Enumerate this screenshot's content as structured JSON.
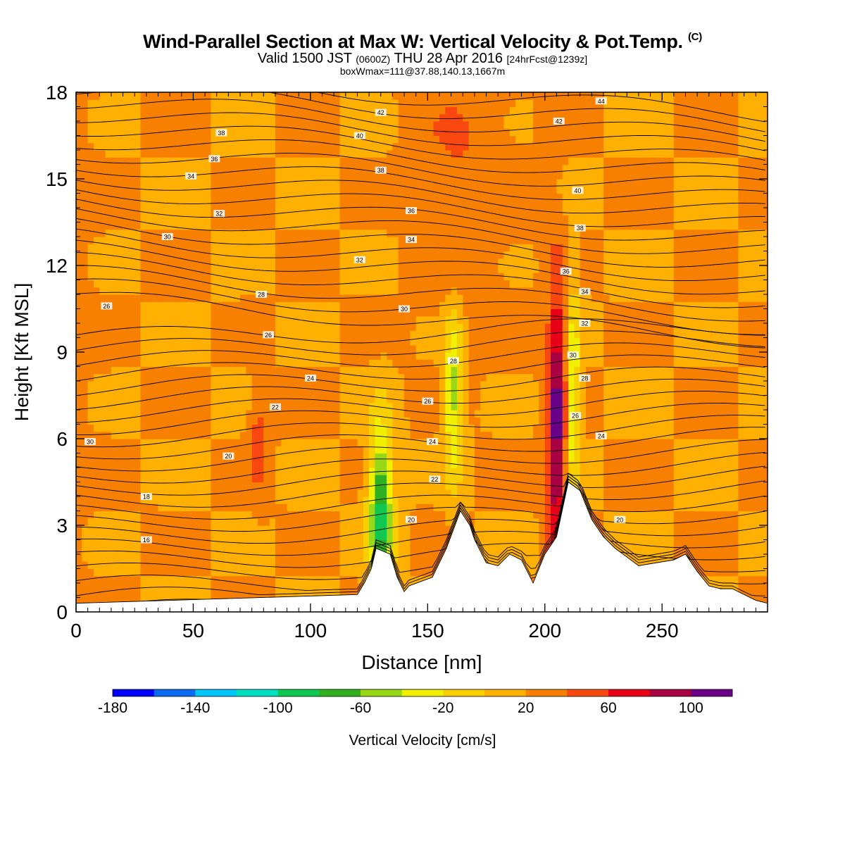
{
  "title": {
    "main": "Wind-Parallel Section at Max W: Vertical Velocity & Pot.Temp.",
    "copyright": "(C)",
    "valid_prefix": "Valid 1500 JST",
    "valid_utc": "(0600Z)",
    "valid_date": "THU 28 Apr 2016",
    "forecast": "[24hrFcst@1239z]",
    "box_info": "boxWmax=111@37.88,140.13,1667m"
  },
  "chart_data": {
    "type": "heatmap",
    "xlabel": "Distance [nm]",
    "ylabel": "Height [Kft MSL]",
    "xlim": [
      0,
      295
    ],
    "ylim": [
      0,
      18
    ],
    "x_ticks": [
      0,
      50,
      100,
      150,
      200,
      250
    ],
    "y_ticks": [
      0,
      3,
      6,
      9,
      12,
      15,
      18
    ],
    "colorbar": {
      "label": "Vertical Velocity [cm/s]",
      "bounds": [
        -180,
        -160,
        -140,
        -120,
        -100,
        -80,
        -60,
        -40,
        -20,
        0,
        20,
        40,
        60,
        80,
        100,
        120
      ],
      "colors": [
        "#0000ff",
        "#0a6cf0",
        "#00c8f8",
        "#00e0c0",
        "#10c850",
        "#30b020",
        "#98d818",
        "#f0f000",
        "#f8d000",
        "#ffb000",
        "#f88000",
        "#f84810",
        "#e80018",
        "#a80040",
        "#680088"
      ],
      "tick_labels": [
        "-180",
        "-140",
        "-100",
        "-60",
        "-20",
        "20",
        "60",
        "100"
      ],
      "tick_values": [
        -180,
        -140,
        -100,
        -60,
        -20,
        20,
        60,
        100
      ]
    },
    "fields": {
      "background_w": 20,
      "features": [
        {
          "x": 0,
          "w_x": 12,
          "y": 12,
          "w_y": 12,
          "w": 15
        },
        {
          "x": 130,
          "w_x": 5,
          "y": 3.5,
          "w_y": 3,
          "w": -100
        },
        {
          "x": 161,
          "w_x": 4,
          "y": 7.5,
          "w_y": 3,
          "w": -60
        },
        {
          "x": 205,
          "w_x": 4,
          "y": 6.5,
          "w_y": 5,
          "w": 100
        },
        {
          "x": 212,
          "w_x": 3,
          "y": 7.5,
          "w_y": 4,
          "w": -50
        },
        {
          "x": 78,
          "w_x": 4,
          "y": 6,
          "w_y": 2,
          "w": 40
        },
        {
          "x": 165,
          "w_x": 20,
          "y": 15,
          "w_y": 5,
          "w": 30
        }
      ]
    },
    "terrain": {
      "x": [
        0,
        120,
        123,
        126,
        128,
        134,
        137,
        140,
        142,
        152,
        158,
        164,
        168,
        170,
        175,
        180,
        185,
        190,
        195,
        200,
        205,
        210,
        215,
        220,
        225,
        230,
        240,
        255,
        260,
        265,
        270,
        275,
        280,
        285,
        290,
        295
      ],
      "height": [
        0.3,
        0.6,
        1.0,
        1.5,
        2.2,
        2.0,
        1.2,
        0.7,
        0.9,
        1.2,
        2.2,
        3.5,
        3.0,
        2.5,
        1.7,
        1.6,
        2.0,
        1.8,
        1.0,
        2.0,
        2.6,
        4.5,
        4.2,
        3.2,
        2.6,
        2.2,
        1.6,
        1.8,
        2.0,
        1.4,
        0.9,
        0.8,
        0.8,
        0.6,
        0.4,
        0.3
      ]
    },
    "theta_contours": {
      "levels": [
        16,
        18,
        20,
        22,
        24,
        26,
        28,
        30,
        32,
        34,
        36,
        38,
        40,
        42,
        44
      ],
      "labels": [
        {
          "text": "16",
          "x": 30,
          "y": 2.5
        },
        {
          "text": "18",
          "x": 30,
          "y": 4.0
        },
        {
          "text": "20",
          "x": 65,
          "y": 5.4
        },
        {
          "text": "30",
          "x": 6,
          "y": 5.9
        },
        {
          "text": "22",
          "x": 85,
          "y": 7.1
        },
        {
          "text": "24",
          "x": 100,
          "y": 8.1
        },
        {
          "text": "26",
          "x": 82,
          "y": 9.6
        },
        {
          "text": "28",
          "x": 79,
          "y": 11.0
        },
        {
          "text": "26",
          "x": 13,
          "y": 10.6
        },
        {
          "text": "30",
          "x": 39,
          "y": 13.0
        },
        {
          "text": "32",
          "x": 61,
          "y": 13.8
        },
        {
          "text": "34",
          "x": 49,
          "y": 15.1
        },
        {
          "text": "36",
          "x": 59,
          "y": 15.7
        },
        {
          "text": "38",
          "x": 62,
          "y": 16.6
        },
        {
          "text": "40",
          "x": 121,
          "y": 16.5
        },
        {
          "text": "42",
          "x": 130,
          "y": 17.3
        },
        {
          "text": "38",
          "x": 130,
          "y": 15.3
        },
        {
          "text": "36",
          "x": 143,
          "y": 13.9
        },
        {
          "text": "34",
          "x": 143,
          "y": 12.9
        },
        {
          "text": "32",
          "x": 121,
          "y": 12.2
        },
        {
          "text": "30",
          "x": 140,
          "y": 10.5
        },
        {
          "text": "28",
          "x": 161,
          "y": 8.7
        },
        {
          "text": "26",
          "x": 150,
          "y": 7.3
        },
        {
          "text": "24",
          "x": 152,
          "y": 5.9
        },
        {
          "text": "22",
          "x": 153,
          "y": 4.6
        },
        {
          "text": "20",
          "x": 143,
          "y": 3.2
        },
        {
          "text": "42",
          "x": 206,
          "y": 17.0
        },
        {
          "text": "44",
          "x": 224,
          "y": 17.7
        },
        {
          "text": "40",
          "x": 214,
          "y": 14.6
        },
        {
          "text": "38",
          "x": 215,
          "y": 13.3
        },
        {
          "text": "36",
          "x": 209,
          "y": 11.8
        },
        {
          "text": "34",
          "x": 217,
          "y": 11.1
        },
        {
          "text": "32",
          "x": 217,
          "y": 10.0
        },
        {
          "text": "30",
          "x": 212,
          "y": 8.9
        },
        {
          "text": "28",
          "x": 217,
          "y": 8.1
        },
        {
          "text": "26",
          "x": 213,
          "y": 6.8
        },
        {
          "text": "24",
          "x": 224,
          "y": 6.1
        },
        {
          "text": "20",
          "x": 232,
          "y": 3.2
        }
      ]
    }
  }
}
